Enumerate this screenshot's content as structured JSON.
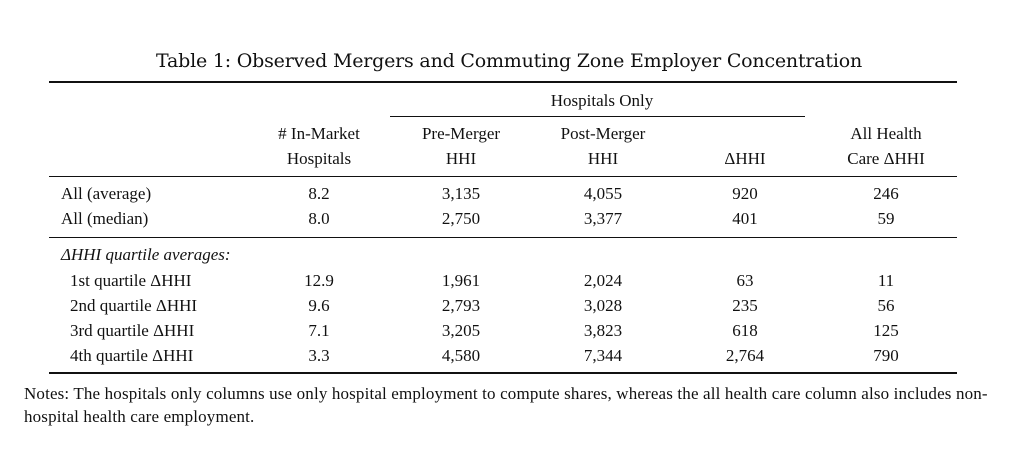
{
  "caption": "Table 1: Observed Mergers and Commuting Zone Employer Concentration",
  "header": {
    "group_label": "Hospitals Only",
    "in_market_line1": "# In-Market",
    "in_market_line2": "Hospitals",
    "pre_line1": "Pre-Merger",
    "pre_line2": "HHI",
    "post_line1": "Post-Merger",
    "post_line2": "HHI",
    "delta": "ΔHHI",
    "all_line1": "All Health",
    "all_line2": "Care ΔHHI"
  },
  "summary_rows": [
    {
      "label": "All (average)",
      "values": [
        "8.2",
        "3,135",
        "4,055",
        "920",
        "246"
      ]
    },
    {
      "label": "All (median)",
      "values": [
        "8.0",
        "2,750",
        "3,377",
        "401",
        "59"
      ]
    }
  ],
  "quartile_heading": "ΔHHI quartile averages:",
  "quartile_rows": [
    {
      "label": "1st quartile ΔHHI",
      "values": [
        "12.9",
        "1,961",
        "2,024",
        "63",
        "11"
      ]
    },
    {
      "label": "2nd quartile ΔHHI",
      "values": [
        "9.6",
        "2,793",
        "3,028",
        "235",
        "56"
      ]
    },
    {
      "label": "3rd quartile ΔHHI",
      "values": [
        "7.1",
        "3,205",
        "3,823",
        "618",
        "125"
      ]
    },
    {
      "label": "4th quartile ΔHHI",
      "values": [
        "3.3",
        "4,580",
        "7,344",
        "2,764",
        "790"
      ]
    }
  ],
  "notes": "Notes: The hospitals only columns use only hospital employment to compute shares, whereas the all health care column also includes non-hospital health care employment."
}
